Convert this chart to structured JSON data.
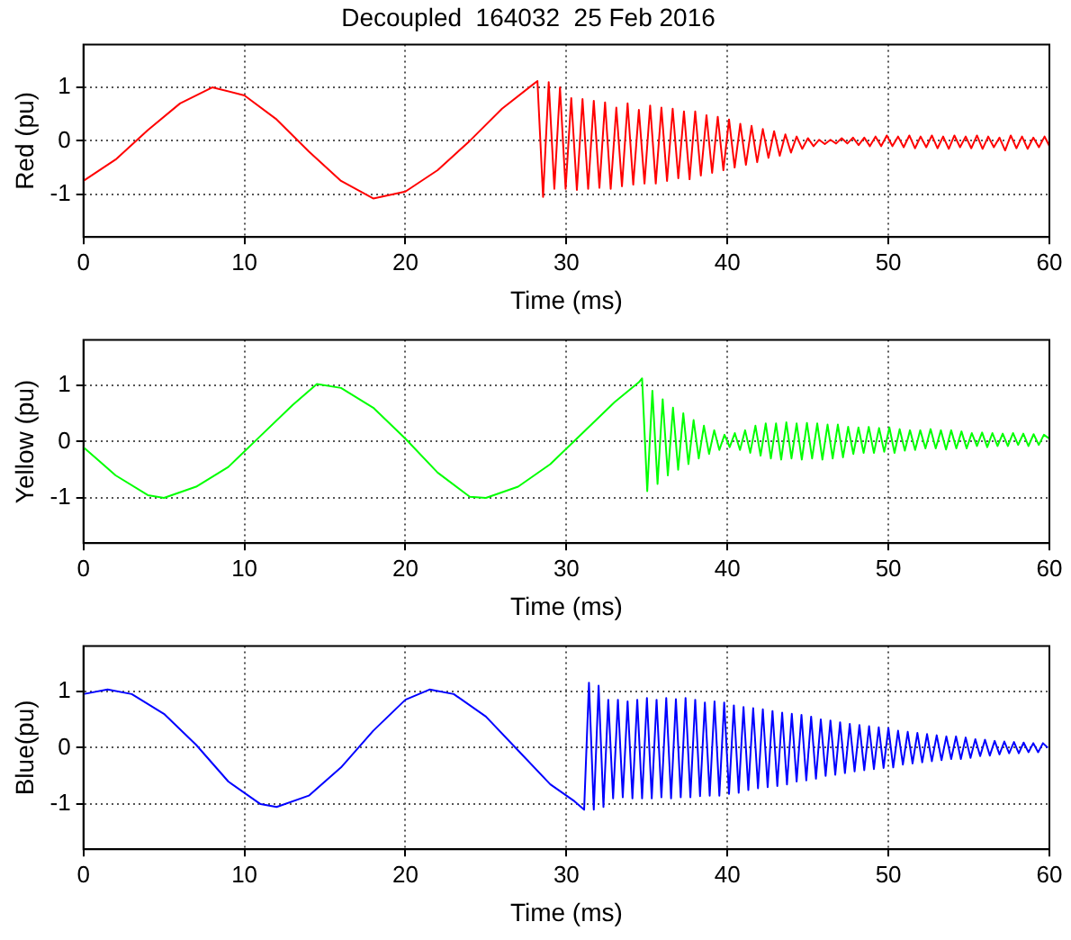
{
  "chart_data": [
    {
      "type": "line",
      "title": "Decoupled  164032  25 Feb 2016",
      "xlabel": "Time (ms)",
      "ylabel": "Red (pu)",
      "color": "#ff0000",
      "xlim": [
        0,
        60
      ],
      "xticks": [
        0,
        10,
        20,
        30,
        40,
        50,
        60
      ],
      "ylim": [
        -1.8,
        1.8
      ],
      "yticks": [
        -1,
        0,
        1
      ],
      "grid": true,
      "x": [
        0,
        2,
        4,
        6,
        8,
        10,
        12,
        14,
        16,
        18,
        20,
        22,
        24,
        26,
        27.9,
        28.2,
        28.55,
        28.9,
        29.25,
        29.6,
        29.95,
        30.3,
        30.65,
        31.0,
        31.35,
        31.7,
        32.05,
        32.4,
        32.75,
        33.1,
        33.45,
        33.8,
        34.15,
        34.5,
        34.85,
        35.2,
        35.55,
        35.9,
        36.25,
        36.6,
        36.95,
        37.3,
        37.65,
        38.0,
        38.35,
        38.7,
        39.05,
        39.4,
        39.75,
        40.1,
        40.45,
        40.8,
        41.15,
        41.5,
        41.85,
        42.2,
        42.55,
        42.9,
        43.25,
        43.6,
        43.95,
        44.3,
        44.65,
        45.0,
        45.35,
        45.7,
        46.05,
        46.4,
        46.75,
        47.1,
        47.45,
        47.8,
        48.15,
        48.5,
        48.85,
        49.2,
        49.55,
        49.9,
        50.25,
        50.6,
        50.95,
        51.3,
        51.65,
        52.0,
        52.35,
        52.7,
        53.05,
        53.4,
        53.75,
        54.1,
        54.45,
        54.8,
        55.15,
        55.5,
        55.85,
        56.2,
        56.55,
        56.9,
        57.25,
        57.6,
        57.95,
        58.3,
        58.65,
        59.0,
        59.35,
        59.7,
        60.0
      ],
      "values": [
        -0.75,
        -0.35,
        0.2,
        0.7,
        1.0,
        0.85,
        0.4,
        -0.2,
        -0.75,
        -1.08,
        -0.95,
        -0.55,
        0.0,
        0.6,
        1.05,
        1.12,
        -1.05,
        1.1,
        -0.9,
        1.0,
        -0.9,
        0.8,
        -0.92,
        0.78,
        -0.9,
        0.75,
        -0.88,
        0.72,
        -0.9,
        0.62,
        -0.85,
        0.7,
        -0.82,
        0.58,
        -0.8,
        0.66,
        -0.8,
        0.62,
        -0.75,
        0.6,
        -0.7,
        0.55,
        -0.72,
        0.55,
        -0.65,
        0.48,
        -0.6,
        0.45,
        -0.55,
        0.4,
        -0.5,
        0.32,
        -0.45,
        0.28,
        -0.4,
        0.22,
        -0.32,
        0.18,
        -0.28,
        0.12,
        -0.22,
        0.08,
        -0.15,
        0.05,
        -0.1,
        0.02,
        -0.06,
        0.02,
        -0.05,
        0.05,
        -0.05,
        0.06,
        -0.08,
        0.06,
        -0.1,
        0.08,
        -0.1,
        0.1,
        -0.1,
        0.08,
        -0.12,
        0.1,
        -0.14,
        0.08,
        -0.12,
        0.1,
        -0.14,
        0.08,
        -0.15,
        0.1,
        -0.12,
        0.08,
        -0.14,
        0.1,
        -0.15,
        0.08,
        -0.12,
        0.06,
        -0.18,
        0.1,
        -0.14,
        0.08,
        -0.15,
        0.06,
        -0.12,
        0.08,
        -0.1
      ]
    },
    {
      "type": "line",
      "xlabel": "Time (ms)",
      "ylabel": "Yellow (pu)",
      "color": "#00ff00",
      "xlim": [
        0,
        60
      ],
      "xticks": [
        0,
        10,
        20,
        30,
        40,
        50,
        60
      ],
      "ylim": [
        -1.8,
        1.8
      ],
      "yticks": [
        -1,
        0,
        1
      ],
      "grid": true,
      "x": [
        0,
        2,
        4,
        5,
        7,
        9,
        11,
        13,
        14.5,
        16,
        18,
        20,
        22,
        24,
        25,
        27,
        29,
        31,
        33,
        34.5,
        34.7,
        35.02,
        35.34,
        35.66,
        35.98,
        36.3,
        36.62,
        36.94,
        37.26,
        37.58,
        37.9,
        38.22,
        38.54,
        38.86,
        39.18,
        39.5,
        39.82,
        40.14,
        40.46,
        40.78,
        41.1,
        41.42,
        41.74,
        42.06,
        42.38,
        42.7,
        43.02,
        43.34,
        43.66,
        43.98,
        44.3,
        44.62,
        44.94,
        45.26,
        45.58,
        45.9,
        46.22,
        46.54,
        46.86,
        47.18,
        47.5,
        47.82,
        48.14,
        48.46,
        48.78,
        49.1,
        49.42,
        49.74,
        50.06,
        50.38,
        50.7,
        51.02,
        51.34,
        51.66,
        51.98,
        52.3,
        52.62,
        52.94,
        53.26,
        53.58,
        53.9,
        54.22,
        54.54,
        54.86,
        55.18,
        55.5,
        55.82,
        56.14,
        56.46,
        56.78,
        57.1,
        57.42,
        57.74,
        58.06,
        58.38,
        58.7,
        59.02,
        59.34,
        59.66,
        60.0
      ],
      "values": [
        -0.1,
        -0.6,
        -0.95,
        -1.0,
        -0.8,
        -0.45,
        0.1,
        0.65,
        1.02,
        0.95,
        0.6,
        0.05,
        -0.55,
        -0.98,
        -1.0,
        -0.8,
        -0.4,
        0.15,
        0.7,
        1.05,
        1.12,
        -0.88,
        0.9,
        -0.75,
        0.75,
        -0.6,
        0.6,
        -0.5,
        0.5,
        -0.4,
        0.38,
        -0.3,
        0.28,
        -0.22,
        0.2,
        -0.15,
        0.12,
        -0.1,
        0.15,
        -0.15,
        0.2,
        -0.2,
        0.28,
        -0.25,
        0.32,
        -0.3,
        0.32,
        -0.32,
        0.34,
        -0.3,
        0.32,
        -0.32,
        0.33,
        -0.3,
        0.32,
        -0.32,
        0.3,
        -0.3,
        0.3,
        -0.28,
        0.26,
        -0.22,
        0.25,
        -0.2,
        0.26,
        -0.2,
        0.24,
        -0.18,
        0.25,
        -0.2,
        0.22,
        -0.16,
        0.2,
        -0.15,
        0.2,
        -0.12,
        0.22,
        -0.12,
        0.2,
        -0.14,
        0.2,
        -0.12,
        0.18,
        -0.12,
        0.15,
        -0.08,
        0.16,
        -0.1,
        0.15,
        -0.08,
        0.14,
        -0.08,
        0.15,
        -0.06,
        0.14,
        -0.08,
        0.13,
        -0.06,
        0.12,
        0.05
      ]
    },
    {
      "type": "line",
      "xlabel": "Time (ms)",
      "ylabel": "Blue(pu)",
      "color": "#0000ff",
      "xlim": [
        0,
        60
      ],
      "xticks": [
        0,
        10,
        20,
        30,
        40,
        50,
        60
      ],
      "ylim": [
        -1.8,
        1.8
      ],
      "yticks": [
        -1,
        0,
        1
      ],
      "grid": true,
      "x": [
        0,
        1.5,
        3,
        5,
        7,
        9,
        11,
        12,
        14,
        16,
        18,
        20,
        21.5,
        23,
        25,
        27,
        29,
        30.5,
        31.1,
        31.4,
        31.7,
        32.0,
        32.3,
        32.6,
        32.9,
        33.2,
        33.5,
        33.8,
        34.1,
        34.4,
        34.7,
        35.0,
        35.3,
        35.6,
        35.9,
        36.2,
        36.5,
        36.8,
        37.1,
        37.4,
        37.7,
        38.0,
        38.3,
        38.6,
        38.9,
        39.2,
        39.5,
        39.8,
        40.1,
        40.4,
        40.7,
        41.0,
        41.3,
        41.6,
        41.9,
        42.2,
        42.5,
        42.8,
        43.1,
        43.4,
        43.7,
        44.0,
        44.3,
        44.6,
        44.9,
        45.2,
        45.5,
        45.8,
        46.1,
        46.4,
        46.7,
        47.0,
        47.3,
        47.6,
        47.9,
        48.2,
        48.5,
        48.8,
        49.1,
        49.4,
        49.7,
        50.0,
        50.3,
        50.6,
        50.9,
        51.2,
        51.5,
        51.8,
        52.1,
        52.4,
        52.7,
        53.0,
        53.3,
        53.6,
        53.9,
        54.2,
        54.5,
        54.8,
        55.1,
        55.4,
        55.7,
        56.0,
        56.3,
        56.6,
        56.9,
        57.2,
        57.5,
        57.8,
        58.1,
        58.4,
        58.7,
        59.0,
        59.3,
        59.6,
        59.9
      ],
      "values": [
        0.95,
        1.03,
        0.95,
        0.6,
        0.05,
        -0.6,
        -1.0,
        -1.05,
        -0.85,
        -0.35,
        0.3,
        0.85,
        1.03,
        0.95,
        0.55,
        -0.05,
        -0.65,
        -0.95,
        -1.1,
        1.15,
        -1.1,
        1.1,
        -1.05,
        0.85,
        -0.9,
        0.85,
        -0.88,
        0.82,
        -0.9,
        0.85,
        -0.9,
        0.88,
        -0.9,
        0.85,
        -0.88,
        0.88,
        -0.9,
        0.86,
        -0.88,
        0.88,
        -0.88,
        0.85,
        -0.86,
        0.8,
        -0.85,
        0.82,
        -0.85,
        0.8,
        -0.82,
        0.75,
        -0.8,
        0.72,
        -0.75,
        0.7,
        -0.72,
        0.68,
        -0.7,
        0.65,
        -0.68,
        0.62,
        -0.65,
        0.6,
        -0.6,
        0.58,
        -0.58,
        0.55,
        -0.55,
        0.5,
        -0.5,
        0.48,
        -0.48,
        0.45,
        -0.45,
        0.42,
        -0.42,
        0.4,
        -0.4,
        0.38,
        -0.38,
        0.36,
        -0.36,
        0.35,
        -0.35,
        0.3,
        -0.3,
        0.28,
        -0.28,
        0.26,
        -0.26,
        0.24,
        -0.24,
        0.22,
        -0.22,
        0.2,
        -0.2,
        0.2,
        -0.2,
        0.18,
        -0.18,
        0.15,
        -0.15,
        0.14,
        -0.14,
        0.12,
        -0.12,
        0.11,
        -0.1,
        0.1,
        -0.1,
        0.09,
        -0.08,
        0.08,
        -0.08,
        0.08,
        0.0
      ]
    }
  ]
}
